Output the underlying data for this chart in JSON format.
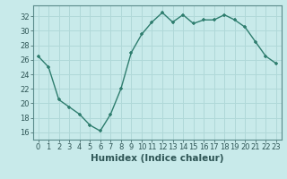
{
  "x": [
    0,
    1,
    2,
    3,
    4,
    5,
    6,
    7,
    8,
    9,
    10,
    11,
    12,
    13,
    14,
    15,
    16,
    17,
    18,
    19,
    20,
    21,
    22,
    23
  ],
  "y": [
    26.5,
    25.0,
    20.5,
    19.5,
    18.5,
    17.0,
    16.2,
    18.5,
    22.0,
    27.0,
    29.5,
    31.2,
    32.5,
    31.2,
    32.2,
    31.0,
    31.5,
    31.5,
    32.2,
    31.5,
    30.5,
    28.5,
    26.5,
    25.5
  ],
  "line_color": "#2e7d6e",
  "marker": "+",
  "bg_color": "#c8eaea",
  "grid_color": "#b0d8d8",
  "xlabel": "Humidex (Indice chaleur)",
  "xlim": [
    -0.5,
    23.5
  ],
  "ylim": [
    15.0,
    33.5
  ],
  "yticks": [
    16,
    18,
    20,
    22,
    24,
    26,
    28,
    30,
    32
  ],
  "xticks": [
    0,
    1,
    2,
    3,
    4,
    5,
    6,
    7,
    8,
    9,
    10,
    11,
    12,
    13,
    14,
    15,
    16,
    17,
    18,
    19,
    20,
    21,
    22,
    23
  ],
  "font_color": "#2e5555",
  "axis_color": "#5a8a8a",
  "xlabel_fontsize": 7.5,
  "tick_fontsize": 6.0,
  "linewidth": 1.0,
  "markersize": 3.5,
  "markeredgewidth": 1.1
}
